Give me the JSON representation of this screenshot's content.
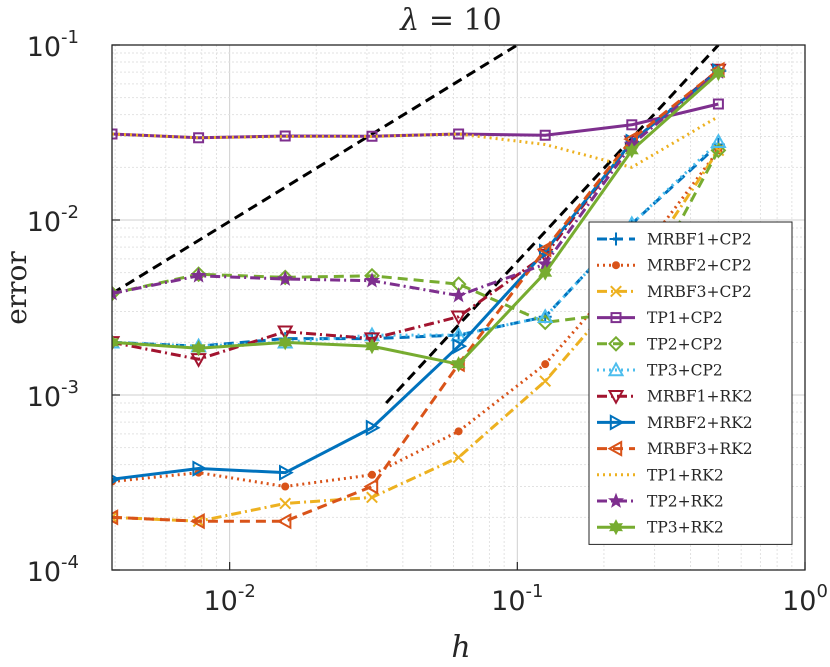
{
  "chart_data": {
    "type": "line",
    "title_lambda": "λ",
    "title_eq": " = 10",
    "xlabel": "h",
    "ylabel": "error",
    "xscale": "log",
    "yscale": "log",
    "xlim": [
      0.0039,
      1
    ],
    "ylim": [
      0.0001,
      0.1
    ],
    "grid": true,
    "legend_placement": "right",
    "x_ticks": [
      {
        "value": 0.01,
        "base": "10",
        "exp": "-2"
      },
      {
        "value": 0.1,
        "base": "10",
        "exp": "-1"
      },
      {
        "value": 1,
        "base": "10",
        "exp": "0"
      }
    ],
    "y_ticks": [
      {
        "value": 0.0001,
        "base": "10",
        "exp": "-4"
      },
      {
        "value": 0.001,
        "base": "10",
        "exp": "-3"
      },
      {
        "value": 0.01,
        "base": "10",
        "exp": "-2"
      },
      {
        "value": 0.1,
        "base": "10",
        "exp": "-1"
      }
    ],
    "x": [
      0.0039,
      0.0078,
      0.0156,
      0.03125,
      0.0625,
      0.125,
      0.25,
      0.5
    ],
    "series": [
      {
        "name": "MRBF1+CP2",
        "color": "#0072BD",
        "dash": "dashed",
        "marker": "plus",
        "values": [
          0.002,
          0.0019,
          0.0021,
          0.0021,
          0.0022,
          0.0028,
          0.0095,
          0.027
        ]
      },
      {
        "name": "MRBF2+CP2",
        "color": "#D95319",
        "dash": "dotted",
        "marker": "dot",
        "values": [
          0.00032,
          0.00036,
          0.0003,
          0.00035,
          0.00062,
          0.0015,
          0.0055,
          0.025
        ]
      },
      {
        "name": "MRBF3+CP2",
        "color": "#EDB120",
        "dash": "dashdot",
        "marker": "x",
        "values": [
          0.0002,
          0.00019,
          0.00024,
          0.00026,
          0.00044,
          0.0012,
          0.0045,
          0.025
        ]
      },
      {
        "name": "TP1+CP2",
        "color": "#7E2F8E",
        "dash": "solid",
        "marker": "square",
        "values": [
          0.031,
          0.0295,
          0.0302,
          0.0301,
          0.031,
          0.0305,
          0.035,
          0.046
        ]
      },
      {
        "name": "TP2+CP2",
        "color": "#77AC30",
        "dash": "dashed",
        "marker": "diamond",
        "values": [
          0.0038,
          0.0049,
          0.0047,
          0.0048,
          0.0043,
          0.0026,
          0.003,
          0.025
        ]
      },
      {
        "name": "TP3+CP2",
        "color": "#4DBEEE",
        "dash": "dotted",
        "marker": "triangle-up",
        "values": [
          0.002,
          0.0019,
          0.002,
          0.0022,
          0.0022,
          0.0028,
          0.0095,
          0.028
        ]
      },
      {
        "name": "MRBF1+RK2",
        "color": "#A2142F",
        "dash": "dashdot",
        "marker": "triangle-down",
        "values": [
          0.002,
          0.0016,
          0.0023,
          0.0021,
          0.0028,
          0.0063,
          0.028,
          0.072
        ]
      },
      {
        "name": "MRBF2+RK2",
        "color": "#0072BD",
        "dash": "solid",
        "marker": "triangle-right",
        "values": [
          0.00033,
          0.00038,
          0.00036,
          0.00065,
          0.0019,
          0.0066,
          0.028,
          0.071
        ]
      },
      {
        "name": "MRBF3+RK2",
        "color": "#D95319",
        "dash": "dashed",
        "marker": "triangle-left",
        "values": [
          0.0002,
          0.00019,
          0.00019,
          0.0003,
          0.0015,
          0.0068,
          0.029,
          0.072
        ]
      },
      {
        "name": "TP1+RK2",
        "color": "#EDB120",
        "dash": "dotted",
        "marker": "none",
        "values": [
          0.031,
          0.0295,
          0.03,
          0.03,
          0.031,
          0.027,
          0.02,
          0.039
        ]
      },
      {
        "name": "TP2+RK2",
        "color": "#7E2F8E",
        "dash": "dashdot",
        "marker": "star",
        "values": [
          0.0038,
          0.0048,
          0.0046,
          0.0045,
          0.0037,
          0.0056,
          0.027,
          0.07
        ]
      },
      {
        "name": "TP3+RK2",
        "color": "#77AC30",
        "dash": "solid",
        "marker": "hexagram",
        "values": [
          0.002,
          0.00185,
          0.002,
          0.0019,
          0.0015,
          0.005,
          0.025,
          0.069
        ]
      }
    ],
    "reference_lines": [
      {
        "color": "#000000",
        "dash": "dashed",
        "points": [
          [
            0.0039,
            0.0038
          ],
          [
            0.1,
            0.1
          ]
        ]
      },
      {
        "color": "#000000",
        "dash": "dashed",
        "points": [
          [
            0.035,
            0.0009
          ],
          [
            0.5,
            0.1
          ]
        ]
      }
    ]
  }
}
